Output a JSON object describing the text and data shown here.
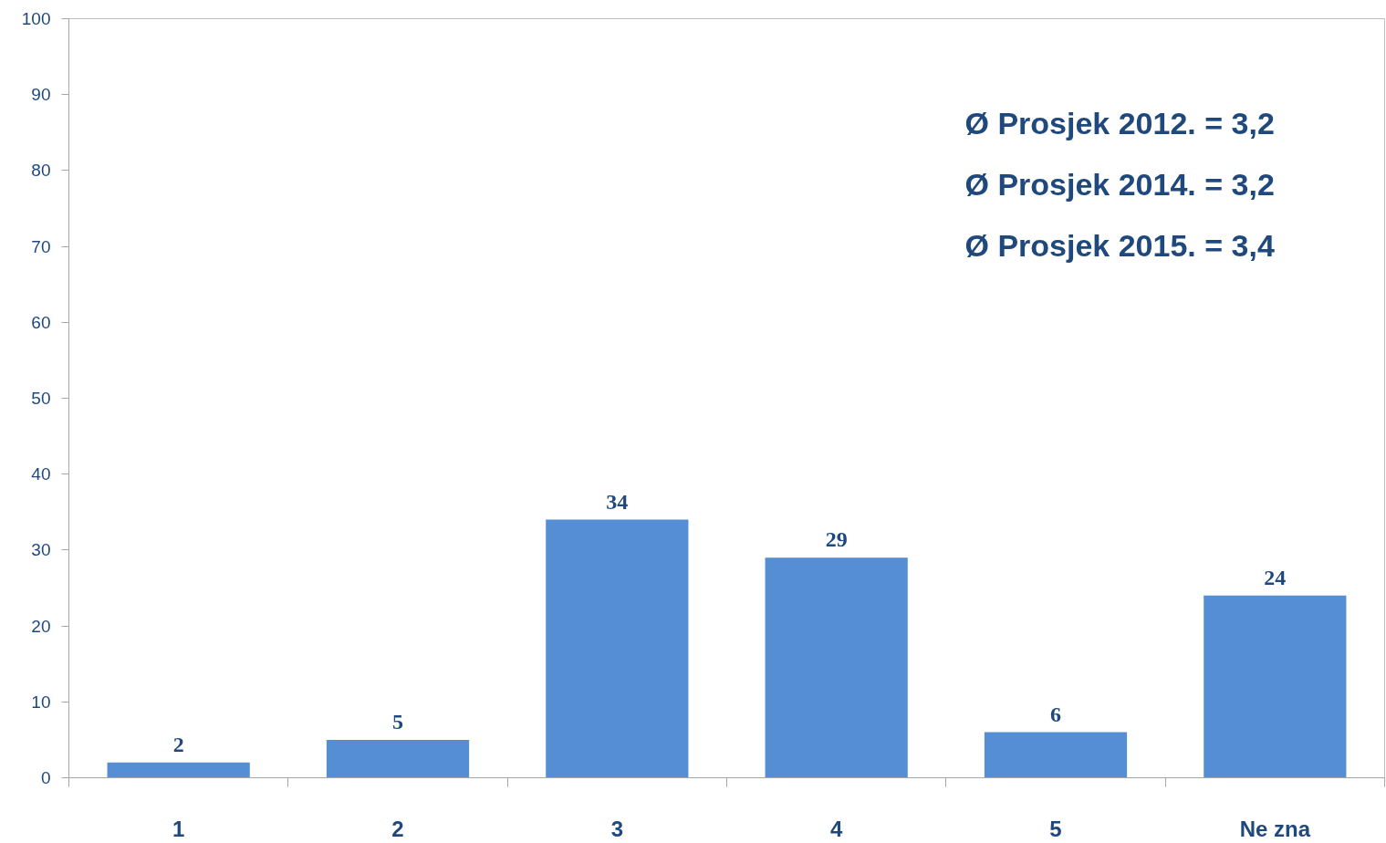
{
  "chart_data": {
    "type": "bar",
    "categories": [
      "1",
      "2",
      "3",
      "4",
      "5",
      "Ne zna"
    ],
    "values": [
      2,
      5,
      34,
      29,
      6,
      24
    ],
    "color": "#558ed5",
    "ylim": [
      0,
      100
    ],
    "yticks": [
      0,
      10,
      20,
      30,
      40,
      50,
      60,
      70,
      80,
      90,
      100
    ],
    "data_labels": true,
    "annotations": [
      "Ø Prosjek 2012. = 3,2",
      "Ø Prosjek 2014. = 3,2",
      "Ø Prosjek 2015. = 3,4"
    ]
  }
}
